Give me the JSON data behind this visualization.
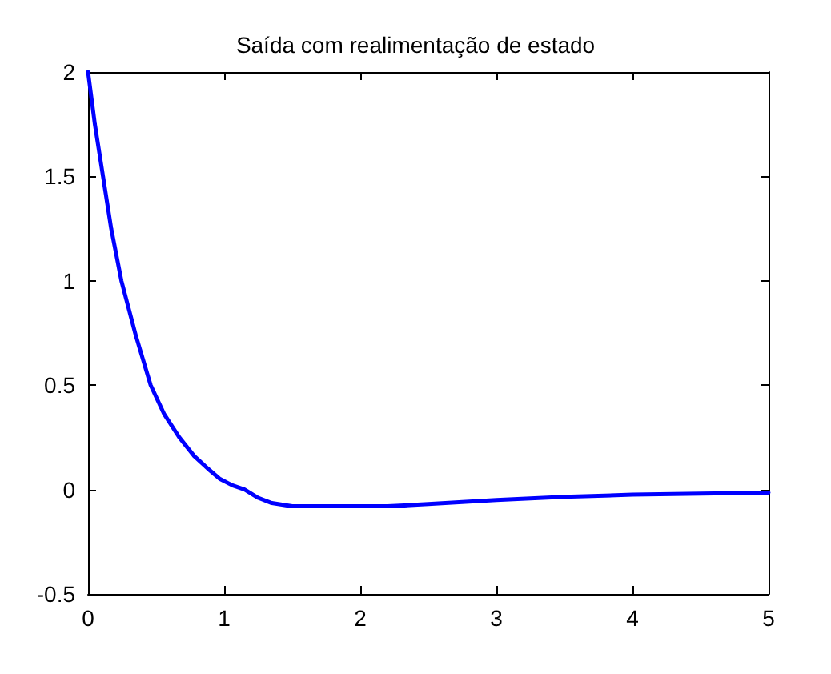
{
  "chart_data": {
    "type": "line",
    "title": "Saída com realimentação de estado",
    "x": [
      0,
      0.05,
      0.11,
      0.17,
      0.245,
      0.35,
      0.46,
      0.56,
      0.67,
      0.78,
      0.88,
      0.97,
      1.06,
      1.15,
      1.25,
      1.35,
      1.5,
      2.2,
      2.5,
      3,
      3.5,
      4,
      4.5,
      5
    ],
    "series": [
      {
        "color": "#0000ff",
        "values": [
          2,
          1.75,
          1.5,
          1.25,
          1,
          0.74,
          0.5,
          0.36,
          0.25,
          0.16,
          0.1,
          0.05,
          0.02,
          0,
          -0.04,
          -0.065,
          -0.08,
          -0.08,
          -0.07,
          -0.05,
          -0.035,
          -0.025,
          -0.02,
          -0.015
        ]
      }
    ],
    "xlim": [
      0,
      5
    ],
    "xticks": [
      0,
      1,
      2,
      3,
      4,
      5
    ],
    "ylim": [
      -0.5,
      2
    ],
    "yticks": [
      -0.5,
      0,
      0.5,
      1,
      1.5,
      2
    ],
    "grid": false,
    "marker": "none",
    "line_style": "solid"
  }
}
